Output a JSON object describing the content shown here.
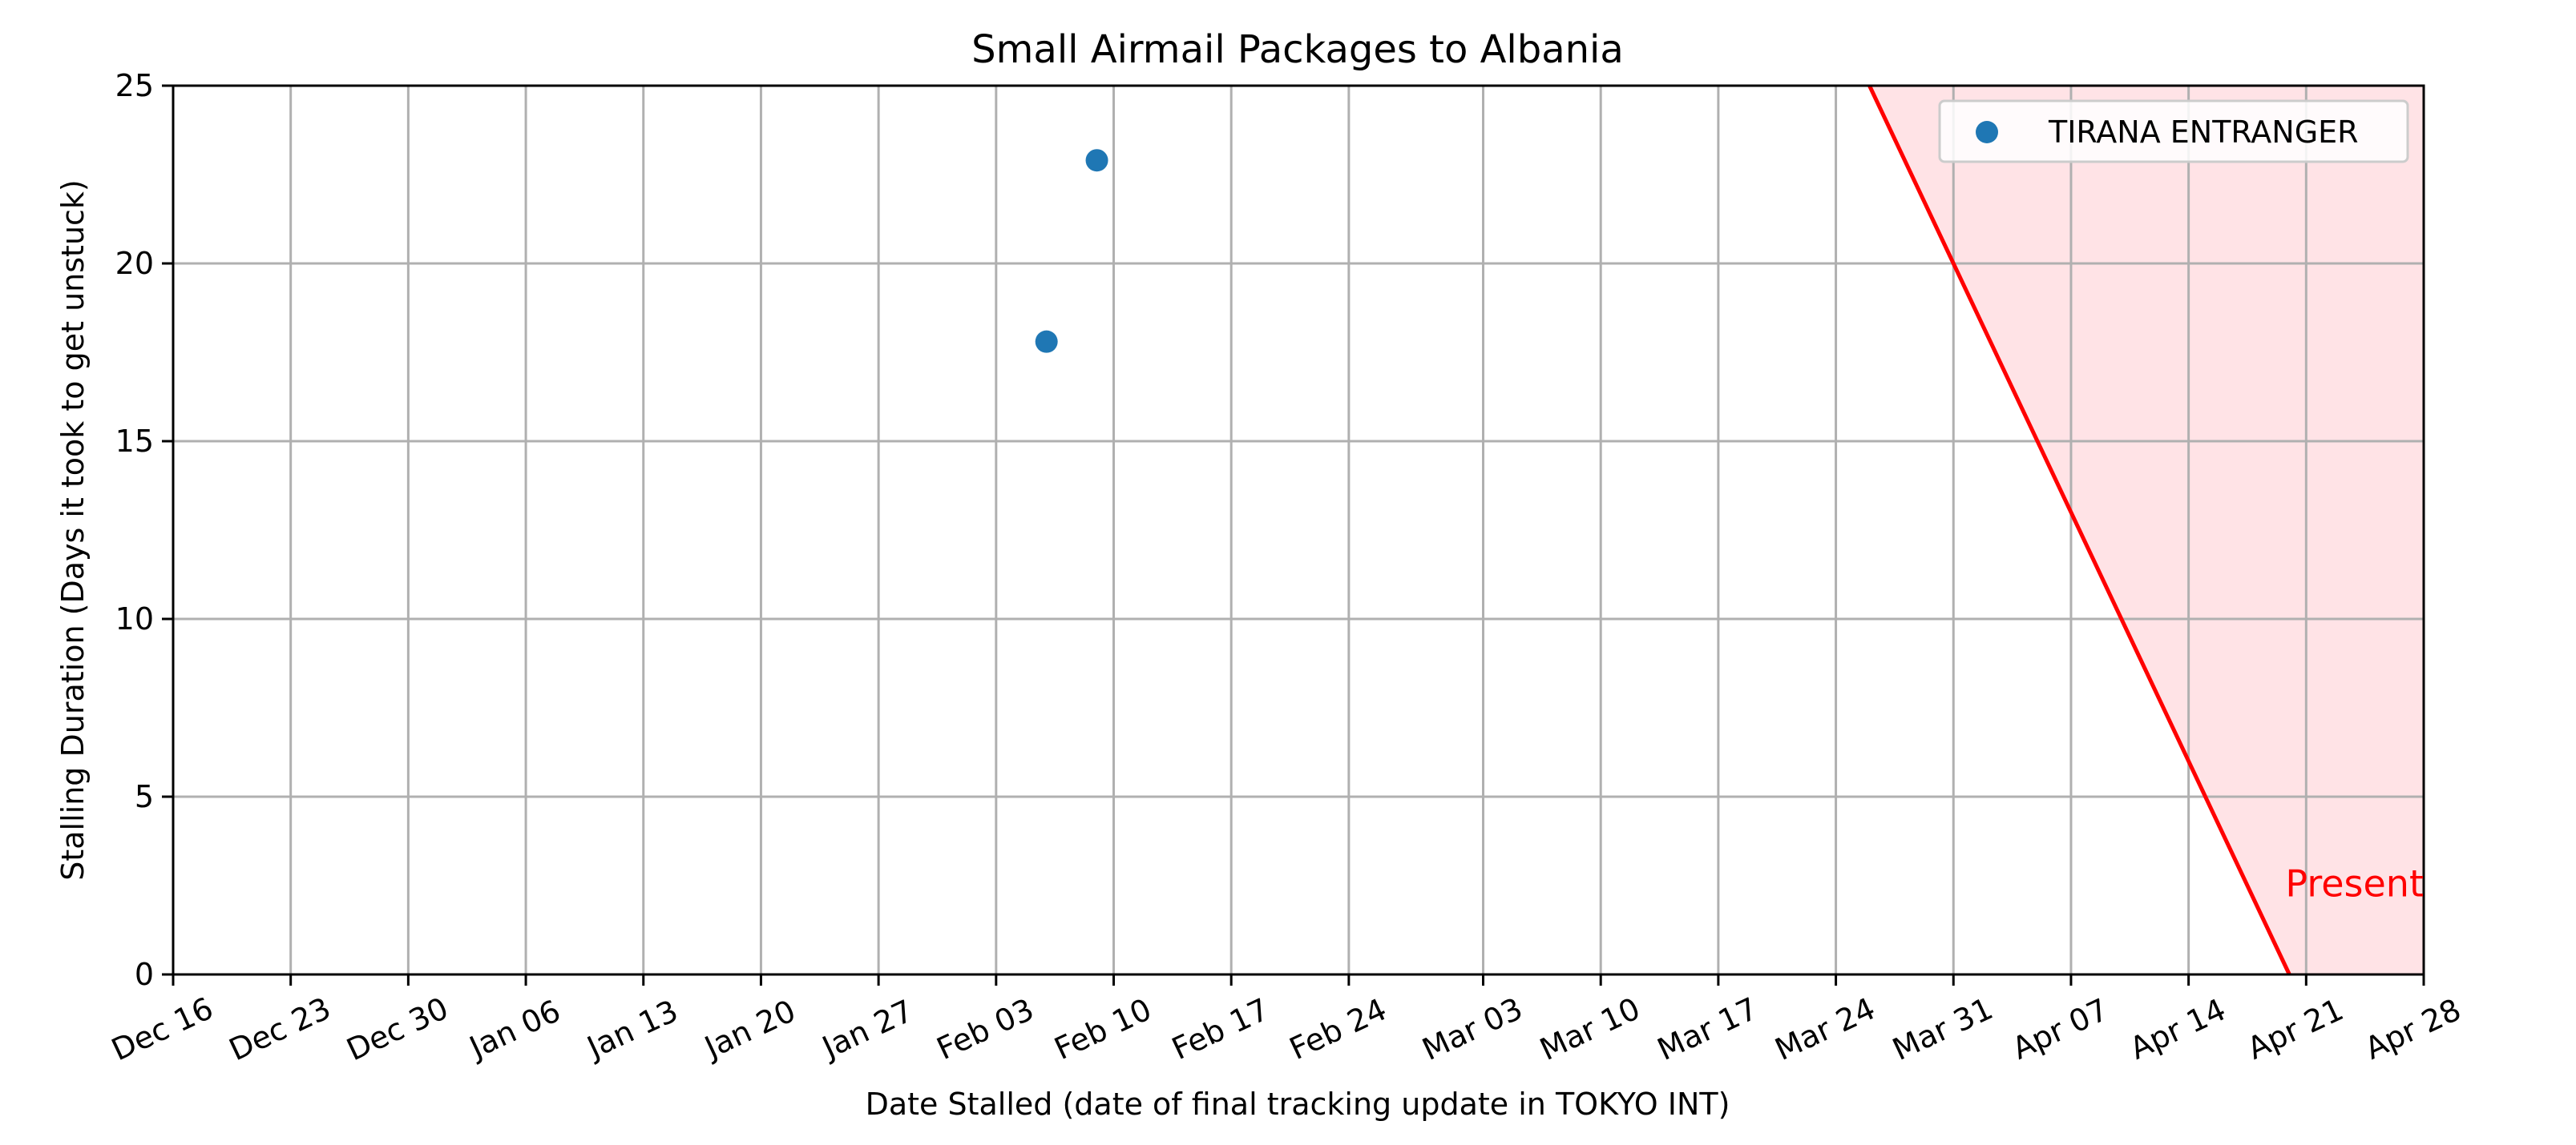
{
  "chart_data": {
    "type": "scatter",
    "title": "Small Airmail Packages to Albania",
    "xlabel": "Date Stalled (date of final tracking update in TOKYO INT)",
    "ylabel": "Stalling Duration (Days it took to get unstuck)",
    "xlim": [
      "Dec 16",
      "Apr 28"
    ],
    "ylim": [
      0,
      25
    ],
    "grid": true,
    "legend_position": "top-right",
    "x_ticks": [
      "Dec 16",
      "Dec 23",
      "Dec 30",
      "Jan 06",
      "Jan 13",
      "Jan 20",
      "Jan 27",
      "Feb 03",
      "Feb 10",
      "Feb 17",
      "Feb 24",
      "Mar 03",
      "Mar 10",
      "Mar 17",
      "Mar 24",
      "Mar 31",
      "Apr 07",
      "Apr 14",
      "Apr 21",
      "Apr 28"
    ],
    "y_ticks": [
      "0",
      "5",
      "10",
      "15",
      "20",
      "25"
    ],
    "series": [
      {
        "name": "TIRANA ENTRANGER",
        "color": "#1f77b4",
        "points": [
          {
            "x": "Feb 06",
            "y": 17.8
          },
          {
            "x": "Feb 09",
            "y": 22.9
          }
        ]
      }
    ],
    "present_line": {
      "label": "Present",
      "color": "#ff0000",
      "shade_color": "#ffe3e6",
      "from": {
        "x": "Mar 26",
        "y": 25
      },
      "to": {
        "x": "Apr 20",
        "y": 0
      }
    }
  }
}
